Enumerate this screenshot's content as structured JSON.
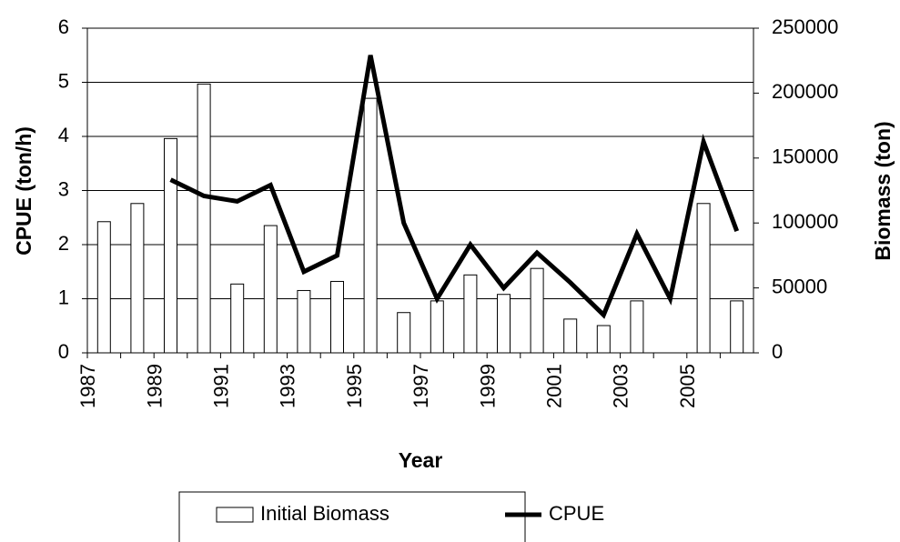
{
  "chart_data": {
    "type": "bar-line",
    "x_label": "Year",
    "y_label": "CPUE (ton/h)",
    "y2_label": "Biomass (ton)",
    "categories": [
      "1987",
      null,
      "1989",
      null,
      "1991",
      null,
      "1993",
      null,
      "1995",
      null,
      "1997",
      null,
      "1999",
      null,
      "2001",
      null,
      "2003",
      null,
      "2005",
      null
    ],
    "series": [
      {
        "name": "Initial Biomass",
        "type": "bar",
        "axis": "y2",
        "color": "#ffffff",
        "values": [
          101000,
          115000,
          165000,
          207000,
          53000,
          98000,
          48000,
          55000,
          196000,
          31000,
          40000,
          60000,
          45000,
          65000,
          26000,
          21000,
          40000,
          null,
          115000,
          40000
        ]
      },
      {
        "name": "CPUE",
        "type": "line",
        "color": "#000000",
        "values": [
          null,
          null,
          3.2,
          2.9,
          2.8,
          3.1,
          1.5,
          1.8,
          5.5,
          2.4,
          1.0,
          2.0,
          1.2,
          1.85,
          1.3,
          0.7,
          2.2,
          1.0,
          3.9,
          2.25
        ]
      }
    ],
    "ylim": [
      0,
      6
    ],
    "yticks": [
      0,
      1,
      2,
      3,
      4,
      5,
      6
    ],
    "y2lim": [
      0,
      250000
    ],
    "y2ticks": [
      0,
      50000,
      100000,
      150000,
      200000,
      250000
    ],
    "grid": true
  }
}
